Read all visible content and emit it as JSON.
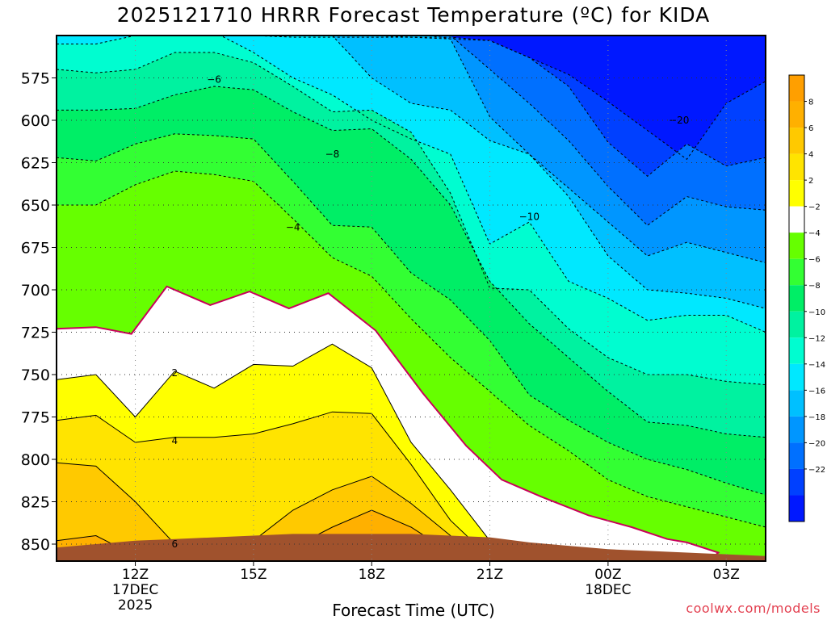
{
  "chart_data": {
    "type": "contour",
    "title": "2025121710 HRRR Forecast Temperature (ºC) for KIDA",
    "xlabel": "Forecast Time (UTC)",
    "ylabel": "",
    "watermark": "coolwx.com/models",
    "x_hours": [
      10,
      11,
      12,
      13,
      14,
      15,
      16,
      17,
      18,
      19,
      20,
      21,
      22,
      23,
      24,
      25,
      26,
      27,
      28
    ],
    "xlim": [
      10,
      28
    ],
    "ylim_hPa": [
      860,
      550
    ],
    "y_ticks": [
      575,
      600,
      625,
      650,
      675,
      700,
      725,
      750,
      775,
      800,
      825,
      850
    ],
    "x_ticks": [
      {
        "hour": 12,
        "lines": [
          "12Z",
          "17DEC",
          "2025"
        ]
      },
      {
        "hour": 15,
        "lines": [
          "15Z"
        ]
      },
      {
        "hour": 18,
        "lines": [
          "18Z"
        ]
      },
      {
        "hour": 21,
        "lines": [
          "21Z"
        ]
      },
      {
        "hour": 24,
        "lines": [
          "00Z",
          "18DEC"
        ]
      },
      {
        "hour": 27,
        "lines": [
          "03Z"
        ]
      }
    ],
    "colorbar": {
      "labels": [
        "8",
        "6",
        "4",
        "2",
        "−2",
        "−4",
        "−6",
        "−8",
        "−10",
        "−12",
        "−14",
        "−16",
        "−18",
        "−20",
        "−22"
      ],
      "colors": [
        "#ff9f00",
        "#ffb000",
        "#ffc900",
        "#ffe400",
        "#ffff00",
        "#ffffff",
        "#66ff00",
        "#33ff33",
        "#00ee66",
        "#00f2a0",
        "#00fdd0",
        "#00e8ff",
        "#00c0ff",
        "#0096ff",
        "#0070ff",
        "#0040ff",
        "#0018ff"
      ]
    },
    "contour_levels": [
      {
        "value": -20,
        "color": "#0040ff",
        "label": "−20",
        "label_at": [
          25.8,
          600
        ],
        "pressures": [
          547,
          548,
          548,
          549,
          549,
          550,
          551,
          551,
          551,
          551,
          552,
          553,
          563,
          573,
          589,
          606,
          623,
          590,
          577
        ]
      },
      {
        "value": -18,
        "color": "#0070ff",
        "label": "",
        "pressures": [
          546,
          546,
          547,
          547,
          548,
          548,
          549,
          550,
          550,
          551,
          551,
          553,
          563,
          580,
          613,
          633,
          614,
          627,
          622
        ]
      },
      {
        "value": -16,
        "color": "#0096ff",
        "label": "",
        "pressures": [
          545,
          545,
          546,
          546,
          546,
          547,
          547,
          548,
          548,
          549,
          550,
          570,
          590,
          612,
          639,
          662,
          645,
          651,
          653
        ]
      },
      {
        "value": -14,
        "color": "#00c0ff",
        "label": "",
        "pressures": [
          545,
          545,
          545,
          545,
          545,
          546,
          546,
          546,
          547,
          548,
          552,
          598,
          620,
          640,
          660,
          680,
          672,
          678,
          684
        ]
      },
      {
        "value": -12,
        "color": "#00e8ff",
        "label": "",
        "pressures": [
          544,
          544,
          544,
          544,
          544,
          545,
          545,
          550,
          575,
          590,
          594,
          612,
          620,
          645,
          680,
          700,
          702,
          705,
          711
        ]
      },
      {
        "value": -10,
        "color": "#00fdd0",
        "label": "−10",
        "label_at": [
          22,
          657
        ],
        "pressures": [
          555,
          555,
          550,
          545,
          548,
          560,
          575,
          585,
          600,
          611,
          620,
          673,
          660,
          695,
          705,
          718,
          715,
          715,
          725
        ]
      },
      {
        "value": -8,
        "color": "#00f2a0",
        "label": "−8",
        "label_at": [
          17,
          620
        ],
        "pressures": [
          570,
          572,
          570,
          560,
          560,
          566,
          580,
          595,
          594,
          607,
          643,
          699,
          700,
          723,
          740,
          750,
          750,
          754,
          756
        ]
      },
      {
        "value": -6,
        "color": "#00ee66",
        "label": "−6",
        "label_at": [
          14,
          576
        ],
        "pressures": [
          594,
          594,
          593,
          585,
          580,
          582,
          595,
          606,
          605,
          623,
          650,
          695,
          720,
          740,
          760,
          778,
          780,
          785,
          787
        ]
      },
      {
        "value": -4,
        "color": "#33ff33",
        "label": "−4",
        "label_at": [
          16,
          663
        ],
        "pressures": [
          622,
          624,
          614,
          608,
          609,
          611,
          636,
          662,
          663,
          690,
          706,
          730,
          762,
          777,
          790,
          800,
          806,
          814,
          821
        ]
      },
      {
        "value": -2,
        "color": "#66ff00",
        "label": "",
        "pressures": [
          650,
          650,
          638,
          630,
          632,
          636,
          658,
          681,
          692,
          717,
          740,
          760,
          780,
          795,
          812,
          822,
          828,
          834,
          840
        ]
      },
      {
        "value": 2,
        "color": "#ffff00",
        "label": "2",
        "label_at": [
          13,
          749
        ],
        "pressures": [
          753,
          750,
          775,
          748,
          758,
          744,
          745,
          732,
          746,
          790,
          818,
          848,
          860,
          860,
          860,
          860,
          860,
          860,
          860
        ]
      },
      {
        "value": 4,
        "color": "#ffe400",
        "label": "4",
        "label_at": [
          13,
          789
        ],
        "pressures": [
          777,
          774,
          790,
          787,
          787,
          785,
          779,
          772,
          773,
          803,
          836,
          858,
          860,
          860,
          860,
          860,
          860,
          860,
          860
        ]
      },
      {
        "value": 6,
        "color": "#ffc900",
        "label": "6",
        "label_at": [
          13,
          850
        ],
        "pressures": [
          802,
          804,
          825,
          850,
          858,
          848,
          830,
          818,
          810,
          826,
          845,
          860,
          860,
          860,
          860,
          860,
          860,
          860,
          860
        ]
      },
      {
        "value": 8,
        "color": "#ffb000",
        "label": "",
        "pressures": [
          848,
          845,
          857,
          858,
          858,
          856,
          852,
          840,
          830,
          840,
          855,
          860,
          860,
          860,
          860,
          860,
          860,
          860,
          860
        ]
      }
    ],
    "zero_isotherm": {
      "color": "#c8005a",
      "hours": [
        10,
        11,
        11.9,
        12.8,
        13.9,
        14.9,
        15.9,
        16.9,
        18.1,
        19.3,
        20.4,
        21.3,
        22.3,
        23.5,
        24.6,
        25.5,
        26.0,
        26.8,
        26.6
      ],
      "pressures": [
        723,
        722,
        726,
        698,
        709,
        701,
        711,
        702,
        724,
        761,
        792,
        812,
        822,
        833,
        840,
        847,
        849,
        855,
        859
      ]
    },
    "terrain": {
      "color": "#a0522d",
      "hours": [
        10,
        11,
        12,
        13,
        14,
        15,
        16,
        17,
        18,
        19,
        20,
        21,
        22,
        23,
        24,
        25,
        26,
        27,
        28
      ],
      "pressures": [
        852,
        850,
        848,
        847,
        846,
        845,
        844,
        844,
        844,
        844,
        845,
        846,
        849,
        851,
        853,
        854,
        855,
        856,
        857
      ]
    }
  }
}
